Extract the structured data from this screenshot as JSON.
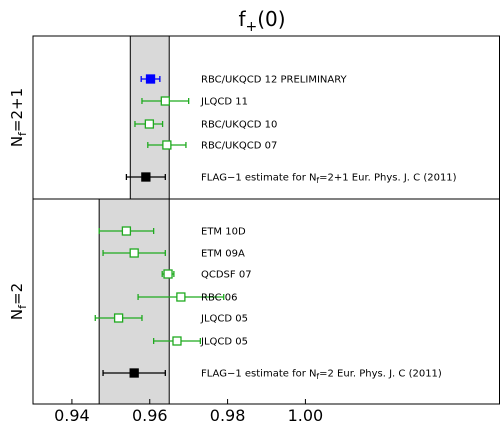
{
  "chart_data": {
    "type": "scatter",
    "title": "f",
    "title_subscript": "+",
    "title_suffix": "(0)",
    "xlim": [
      0.93,
      1.05
    ],
    "xticks": [
      0.94,
      0.96,
      0.98,
      1.0
    ],
    "xtick_labels": [
      "0.94",
      "0.96",
      "0.98",
      "1.00"
    ],
    "colors": {
      "blue": "#0000ff",
      "green": "#1faa1f",
      "black": "#000000",
      "band_fill": "#d9d9d9"
    },
    "panels": [
      {
        "label_main": "N",
        "label_sub": "f",
        "label_rest": "=2+1",
        "band": [
          0.955,
          0.965
        ],
        "points": [
          {
            "label": "RBC/UKQCD 12 PRELIMINARY",
            "value": 0.9602,
            "err_minus": 0.0024,
            "err_plus": 0.0024,
            "color": "blue",
            "filled": true
          },
          {
            "label": "JLQCD 11",
            "value": 0.964,
            "err_minus": 0.006,
            "err_plus": 0.006,
            "color": "green",
            "filled": false
          },
          {
            "label": "RBC/UKQCD 10",
            "value": 0.9599,
            "err_minus": 0.0037,
            "err_plus": 0.0034,
            "color": "green",
            "filled": false
          },
          {
            "label": "RBC/UKQCD 07",
            "value": 0.9644,
            "err_minus": 0.0049,
            "err_plus": 0.0049,
            "color": "green",
            "filled": false
          },
          {
            "label": "FLAG−1 estimate for N",
            "label_sub": "f",
            "label_rest": "=2+1 Eur. Phys. J. C (2011)",
            "value": 0.959,
            "err_minus": 0.005,
            "err_plus": 0.005,
            "color": "black",
            "filled": true
          }
        ]
      },
      {
        "label_main": "N",
        "label_sub": "f",
        "label_rest": "=2",
        "band": [
          0.947,
          0.965
        ],
        "points": [
          {
            "label": "ETM 10D",
            "value": 0.954,
            "err_minus": 0.007,
            "err_plus": 0.007,
            "color": "green",
            "filled": false
          },
          {
            "label": "ETM 09A",
            "value": 0.956,
            "err_minus": 0.008,
            "err_plus": 0.008,
            "color": "green",
            "filled": false
          },
          {
            "label": "QCDSF 07",
            "value": 0.9647,
            "err_minus": 0.0015,
            "err_plus": 0.0015,
            "color": "green",
            "filled": false
          },
          {
            "label": "RBC 06",
            "value": 0.968,
            "err_minus": 0.011,
            "err_plus": 0.011,
            "color": "green",
            "filled": false
          },
          {
            "label": "JLQCD 05",
            "value": 0.952,
            "err_minus": 0.006,
            "err_plus": 0.006,
            "color": "green",
            "filled": false
          },
          {
            "label": "JLQCD 05",
            "value": 0.967,
            "err_minus": 0.006,
            "err_plus": 0.006,
            "color": "green",
            "filled": false
          },
          {
            "label": "FLAG−1 estimate for N",
            "label_sub": "f",
            "label_rest": "=2 Eur. Phys. J. C (2011)",
            "value": 0.956,
            "err_minus": 0.008,
            "err_plus": 0.008,
            "color": "black",
            "filled": true
          }
        ]
      }
    ]
  }
}
